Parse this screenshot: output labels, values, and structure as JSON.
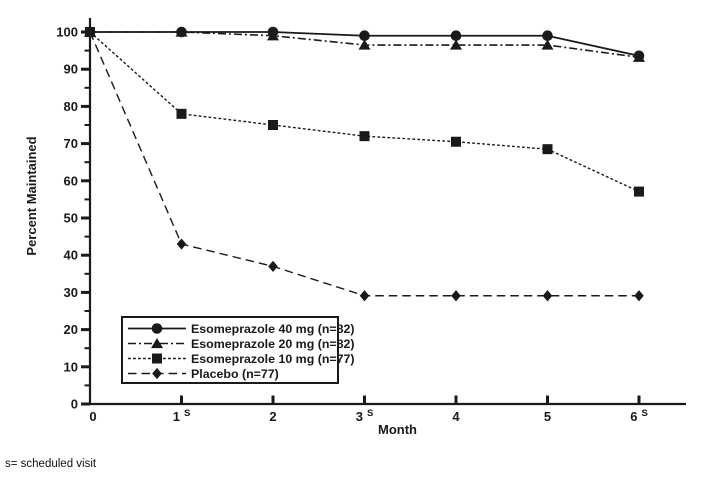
{
  "figure": {
    "background": "#ffffff",
    "ink": "#1a1a1a"
  },
  "chart_data": {
    "type": "line",
    "title": "",
    "xlabel": "Month",
    "ylabel": "Percent Maintained",
    "xlim": [
      0,
      6
    ],
    "ylim": [
      0,
      100
    ],
    "grid": false,
    "legend_position": "lower-left-inside",
    "x": [
      0,
      1,
      2,
      3,
      4,
      5,
      6
    ],
    "yticks": {
      "min": 0,
      "max": 100,
      "step": 10,
      "minor_step": 5
    },
    "xticks": [
      {
        "text": "0"
      },
      {
        "text": "1",
        "sup": "S"
      },
      {
        "text": "2"
      },
      {
        "text": "3",
        "sup": "S"
      },
      {
        "text": "4"
      },
      {
        "text": "5"
      },
      {
        "text": "6",
        "sup": "S"
      }
    ],
    "series": [
      {
        "name": "Esomeprazole 40 mg (n=82)",
        "marker": "circle",
        "line_style": "solid",
        "values": [
          100,
          100,
          100,
          99,
          99,
          99,
          93.6
        ]
      },
      {
        "name": "Esomeprazole 20 mg (n=82)",
        "marker": "triangle",
        "line_style": "dash-dot",
        "values": [
          100,
          100,
          99,
          96.5,
          96.5,
          96.5,
          93.2
        ]
      },
      {
        "name": "Esomeprazole 10 mg (n=77)",
        "marker": "square",
        "line_style": "dash",
        "values": [
          100,
          78,
          75,
          72,
          70.5,
          68.5,
          57.1
        ]
      },
      {
        "name": "Placebo (n=77)",
        "marker": "diamond",
        "line_style": "long-dash",
        "values": [
          100,
          43,
          37,
          29.1,
          29.1,
          29.1,
          29.1
        ]
      }
    ],
    "footnote": "s= scheduled visit"
  }
}
